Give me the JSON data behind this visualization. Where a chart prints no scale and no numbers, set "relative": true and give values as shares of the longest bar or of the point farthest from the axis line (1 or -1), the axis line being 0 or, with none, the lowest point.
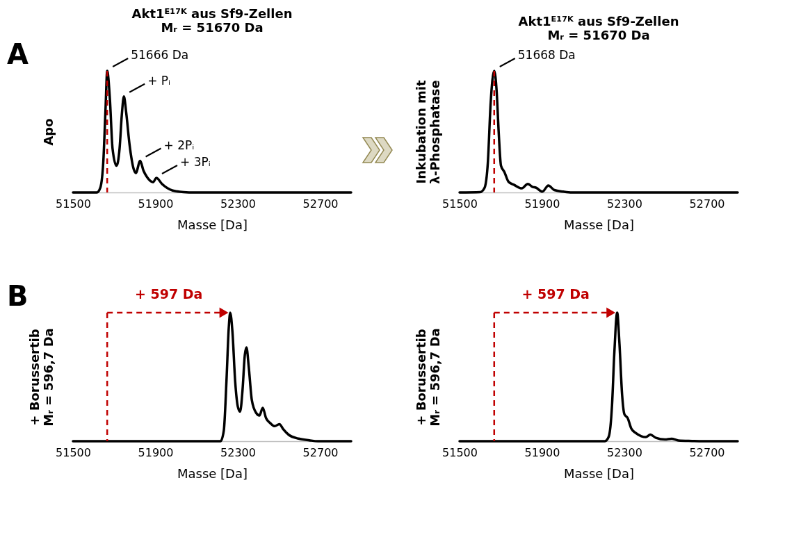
{
  "chart_data": [
    {
      "type": "line",
      "title": "Akt1ᴱ¹⁷ᴷ aus Sf9-Zellen",
      "subtitle": "Mᵣ = 51670 Da",
      "xlabel": "Masse [Da]",
      "ylabel": "Apo",
      "relative": true,
      "grid": false,
      "line_style": "solid",
      "xlim": [
        51500,
        52850
      ],
      "xticks": [
        51500,
        51900,
        52300,
        52700
      ],
      "series": [
        {
          "color": "#000000",
          "x": [
            51500,
            51616,
            51632,
            51647,
            51658,
            51666,
            51679,
            51692,
            51711,
            51726,
            51737,
            51747,
            51758,
            51774,
            51795,
            51805,
            51826,
            51842,
            51858,
            51889,
            51905,
            51932,
            51984,
            52037,
            52089,
            52850
          ],
          "values": [
            0,
            0,
            0.036,
            0.25,
            0.69,
            1,
            0.77,
            0.36,
            0.22,
            0.36,
            0.64,
            0.79,
            0.66,
            0.4,
            0.19,
            0.16,
            0.26,
            0.18,
            0.13,
            0.085,
            0.12,
            0.07,
            0.016,
            0.003,
            0,
            0
          ]
        }
      ],
      "ref_lines": [
        {
          "axis": "x",
          "value": 51666,
          "color": "#c00000",
          "line_style": "dashed"
        }
      ],
      "annotations": [
        "A",
        {
          "text": "51666 Da",
          "x": 51666,
          "y": 1
        },
        {
          "text": "+ Pᵢ",
          "x": 51747,
          "y": 0.79
        },
        {
          "text": "+ 2Pᵢ",
          "x": 51826,
          "y": 0.26
        },
        {
          "text": "+ 3Pᵢ",
          "x": 51905,
          "y": 0.12
        }
      ]
    },
    {
      "type": "line",
      "title": "Akt1ᴱ¹⁷ᴷ aus Sf9-Zellen",
      "subtitle": "Mᵣ = 51670 Da",
      "xlabel": "Masse [Da]",
      "ylabel": "Inkubation mit\nλ-Phosphatase",
      "relative": true,
      "grid": false,
      "line_style": "solid",
      "xlim": [
        51500,
        52850
      ],
      "xticks": [
        51500,
        51900,
        52300,
        52700
      ],
      "series": [
        {
          "color": "#000000",
          "x": [
            51500,
            51600,
            51621,
            51637,
            51651,
            51668,
            51680,
            51690,
            51701,
            51717,
            51738,
            51765,
            51802,
            51831,
            51855,
            51870,
            51902,
            51931,
            51960,
            52003,
            52045,
            52850
          ],
          "values": [
            0,
            0.003,
            0.037,
            0.24,
            0.74,
            1,
            0.83,
            0.49,
            0.22,
            0.17,
            0.087,
            0.062,
            0.034,
            0.07,
            0.045,
            0.04,
            0.007,
            0.057,
            0.02,
            0.007,
            0,
            0
          ]
        }
      ],
      "ref_lines": [
        {
          "axis": "x",
          "value": 51668,
          "color": "#c00000",
          "line_style": "dashed"
        }
      ],
      "annotations": [
        {
          "text": "51668 Da",
          "x": 51668,
          "y": 1
        }
      ]
    },
    {
      "type": "line",
      "xlabel": "Masse [Da]",
      "ylabel": "+ Borussertib\nMᵣ = 596,7 Da",
      "relative": true,
      "grid": false,
      "line_style": "solid",
      "xlim": [
        51500,
        52850
      ],
      "xticks": [
        51500,
        51900,
        52300,
        52700
      ],
      "series": [
        {
          "color": "#000000",
          "x": [
            51500,
            52216,
            52232,
            52245,
            52256,
            52263,
            52274,
            52287,
            52300,
            52311,
            52323,
            52334,
            52342,
            52353,
            52368,
            52389,
            52405,
            52421,
            52437,
            52458,
            52479,
            52502,
            52521,
            52547,
            52595,
            52647,
            52689,
            52850
          ],
          "values": [
            0,
            0,
            0.083,
            0.47,
            0.88,
            1,
            0.85,
            0.47,
            0.27,
            0.23,
            0.4,
            0.67,
            0.73,
            0.58,
            0.32,
            0.22,
            0.2,
            0.26,
            0.18,
            0.14,
            0.117,
            0.133,
            0.092,
            0.05,
            0.02,
            0.007,
            0,
            0
          ]
        }
      ],
      "ref_lines": [
        {
          "axis": "x",
          "value": 51666,
          "color": "#c00000",
          "line_style": "dashed",
          "label": "+ 597 Da"
        }
      ],
      "annotations": [
        "B"
      ]
    },
    {
      "type": "line",
      "xlabel": "Masse [Da]",
      "ylabel": "+ Borussertib\nMᵣ = 596,7 Da",
      "relative": true,
      "grid": false,
      "line_style": "solid",
      "xlim": [
        51500,
        52850
      ],
      "xticks": [
        51500,
        51900,
        52300,
        52700
      ],
      "series": [
        {
          "color": "#000000",
          "x": [
            51500,
            52205,
            52224,
            52240,
            52251,
            52265,
            52276,
            52289,
            52300,
            52316,
            52333,
            52355,
            52382,
            52404,
            52426,
            52453,
            52497,
            52529,
            52562,
            52628,
            52680,
            52850
          ],
          "values": [
            0,
            0,
            0.035,
            0.28,
            0.68,
            1,
            0.76,
            0.36,
            0.21,
            0.18,
            0.1,
            0.064,
            0.039,
            0.032,
            0.051,
            0.026,
            0.013,
            0.019,
            0.006,
            0.002,
            0,
            0
          ]
        }
      ],
      "ref_lines": [
        {
          "axis": "x",
          "value": 51668,
          "color": "#c00000",
          "line_style": "dashed",
          "label": "+ 597 Da"
        }
      ]
    }
  ]
}
